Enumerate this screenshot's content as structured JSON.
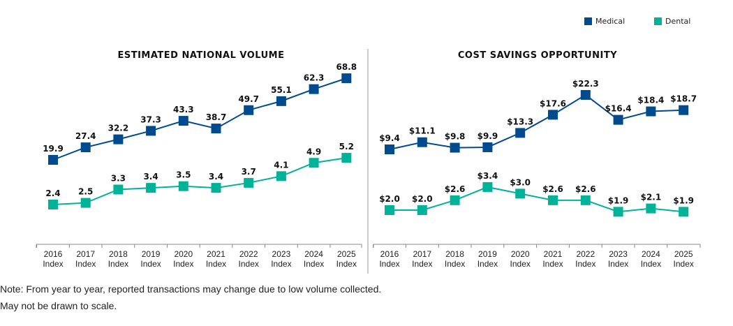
{
  "colors": {
    "medical": "#004B8D",
    "dental": "#00B398"
  },
  "legend": {
    "medical": "Medical",
    "dental": "Dental"
  },
  "notes": [
    "Note: From year to year, reported transactions may change due to low volume collected.",
    "May not be drawn to scale."
  ],
  "chart_data": [
    {
      "type": "line",
      "title": "ESTIMATED NATIONAL VOLUME",
      "categories": [
        "2016 Index",
        "2017 Index",
        "2018 Index",
        "2019 Index",
        "2020 Index",
        "2021 Index",
        "2022 Index",
        "2023 Index",
        "2024 Index",
        "2025 Index"
      ],
      "series": [
        {
          "name": "Medical",
          "values": [
            19.9,
            27.4,
            32.2,
            37.3,
            43.3,
            38.7,
            49.7,
            55.1,
            62.3,
            68.8
          ],
          "labels": [
            "19.9",
            "27.4",
            "32.2",
            "37.3",
            "43.3",
            "38.7",
            "49.7",
            "55.1",
            "62.3",
            "68.8"
          ]
        },
        {
          "name": "Dental",
          "values": [
            2.4,
            2.5,
            3.3,
            3.4,
            3.5,
            3.4,
            3.7,
            4.1,
            4.9,
            5.2
          ],
          "labels": [
            "2.4",
            "2.5",
            "3.3",
            "3.4",
            "3.5",
            "3.4",
            "3.7",
            "4.1",
            "4.9",
            "5.2"
          ]
        }
      ],
      "legend": "top-right",
      "grid": false
    },
    {
      "type": "line",
      "title": "COST SAVINGS OPPORTUNITY",
      "categories": [
        "2016 Index",
        "2017 Index",
        "2018 Index",
        "2019 Index",
        "2020 Index",
        "2021 Index",
        "2022 Index",
        "2023 Index",
        "2024 Index",
        "2025 Index"
      ],
      "series": [
        {
          "name": "Medical",
          "values": [
            9.4,
            11.1,
            9.8,
            9.9,
            13.3,
            17.6,
            22.3,
            16.4,
            18.4,
            18.7
          ],
          "labels": [
            "$9.4",
            "$11.1",
            "$9.8",
            "$9.9",
            "$13.3",
            "$17.6",
            "$22.3",
            "$16.4",
            "$18.4",
            "$18.7"
          ]
        },
        {
          "name": "Dental",
          "values": [
            2.0,
            2.0,
            2.6,
            3.4,
            3.0,
            2.6,
            2.6,
            1.9,
            2.1,
            1.9
          ],
          "labels": [
            "$2.0",
            "$2.0",
            "$2.6",
            "$3.4",
            "$3.0",
            "$2.6",
            "$2.6",
            "$1.9",
            "$2.1",
            "$1.9"
          ]
        }
      ],
      "legend": "top-right",
      "grid": false
    }
  ]
}
